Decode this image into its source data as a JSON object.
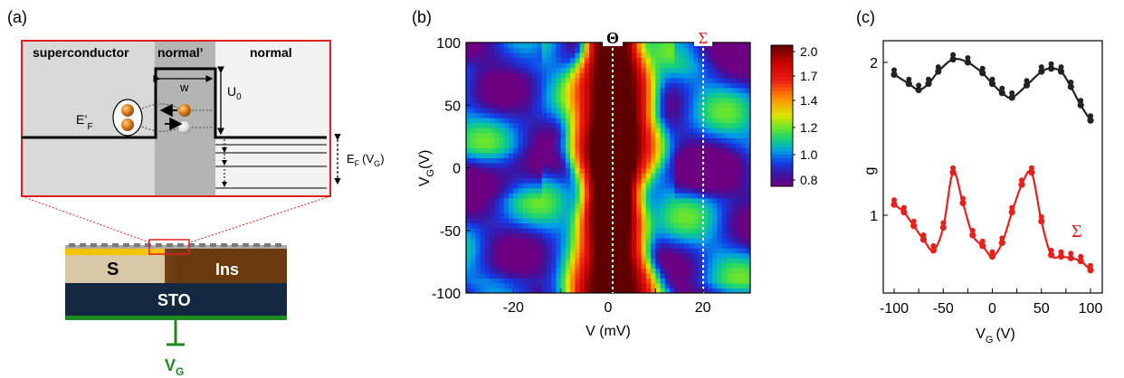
{
  "panels": {
    "a": {
      "label": "(a)",
      "regions": [
        "superconductor",
        "normal’",
        "normal"
      ],
      "w_label": "w",
      "u0_label": "U",
      "u0_sub": "0",
      "ef_prime_label": "E’",
      "ef_prime_sub": "F",
      "ef_label": "E",
      "ef_sub": "F",
      "ef_paren": "(V",
      "ef_paren_sub": "G",
      "ef_close": ")",
      "device": {
        "s_label": "S",
        "ins_label": "Ins",
        "sto_label": "STO",
        "gate_label": "V",
        "gate_sub": "G"
      }
    },
    "b": {
      "label": "(b)",
      "theta_label": "Θ",
      "sigma_label": "Σ",
      "ylabel": "V",
      "ylabel_sub": "G",
      "ylabel_unit": "(V)",
      "xlabel": "V (mV)",
      "xticks": [
        "-20",
        "0",
        "20"
      ],
      "yticks": [
        "100",
        "50",
        "0",
        "-50",
        "-100"
      ],
      "colorbar_ticks": [
        "2.0",
        "1.7",
        "1.4",
        "1.2",
        "1.0",
        "0.8"
      ]
    },
    "c": {
      "label": "(c)",
      "ylabel": "g",
      "xlabel": "V",
      "xlabel_sub": "G",
      "xlabel_unit": "(V)",
      "yticks": [
        "2",
        "1"
      ],
      "xticks": [
        "-100",
        "-50",
        "0",
        "50",
        "100"
      ],
      "sigma_label": "Σ"
    }
  },
  "colors": {
    "frame_red": "#e02020",
    "black_series": "#222222",
    "red_series": "#e8201c",
    "gate_green": "#1f8a1f",
    "sto_navy": "#14283f",
    "ins_brown": "#6b3a10",
    "s_tan": "#d8c9a6"
  },
  "chart_data": [
    {
      "type": "heatmap",
      "xlabel": "V (mV)",
      "ylabel": "VG(V)",
      "xlim": [
        -30,
        30
      ],
      "ylim": [
        -100,
        100
      ],
      "colorbar": {
        "ticks": [
          2.0,
          1.7,
          1.4,
          1.2,
          1.0,
          0.8
        ]
      },
      "markers": [
        {
          "label": "Θ",
          "x": 1
        },
        {
          "label": "Σ",
          "x": 20
        }
      ]
    },
    {
      "type": "line",
      "xlabel": "VG (V)",
      "ylabel": "g",
      "xlim": [
        -100,
        100
      ],
      "yticks": [
        1,
        2
      ],
      "series": [
        {
          "x": [
            -100,
            -85,
            -75,
            -65,
            -55,
            -40,
            -25,
            -10,
            0,
            10,
            20,
            35,
            50,
            60,
            70,
            80,
            90,
            100
          ],
          "values": [
            1.92,
            1.86,
            1.82,
            1.86,
            1.94,
            2.02,
            2.0,
            1.93,
            1.86,
            1.8,
            1.77,
            1.85,
            1.94,
            1.96,
            1.94,
            1.84,
            1.72,
            1.62
          ]
        },
        {
          "name": "Σ",
          "x": [
            -100,
            -90,
            -80,
            -70,
            -60,
            -50,
            -40,
            -30,
            -20,
            -10,
            0,
            10,
            20,
            30,
            40,
            50,
            60,
            70,
            80,
            90,
            100
          ],
          "values": [
            1.07,
            1.02,
            0.93,
            0.84,
            0.77,
            0.92,
            1.28,
            1.08,
            0.87,
            0.8,
            0.73,
            0.82,
            1.02,
            1.2,
            1.28,
            0.96,
            0.74,
            0.73,
            0.72,
            0.7,
            0.64
          ]
        }
      ]
    }
  ]
}
